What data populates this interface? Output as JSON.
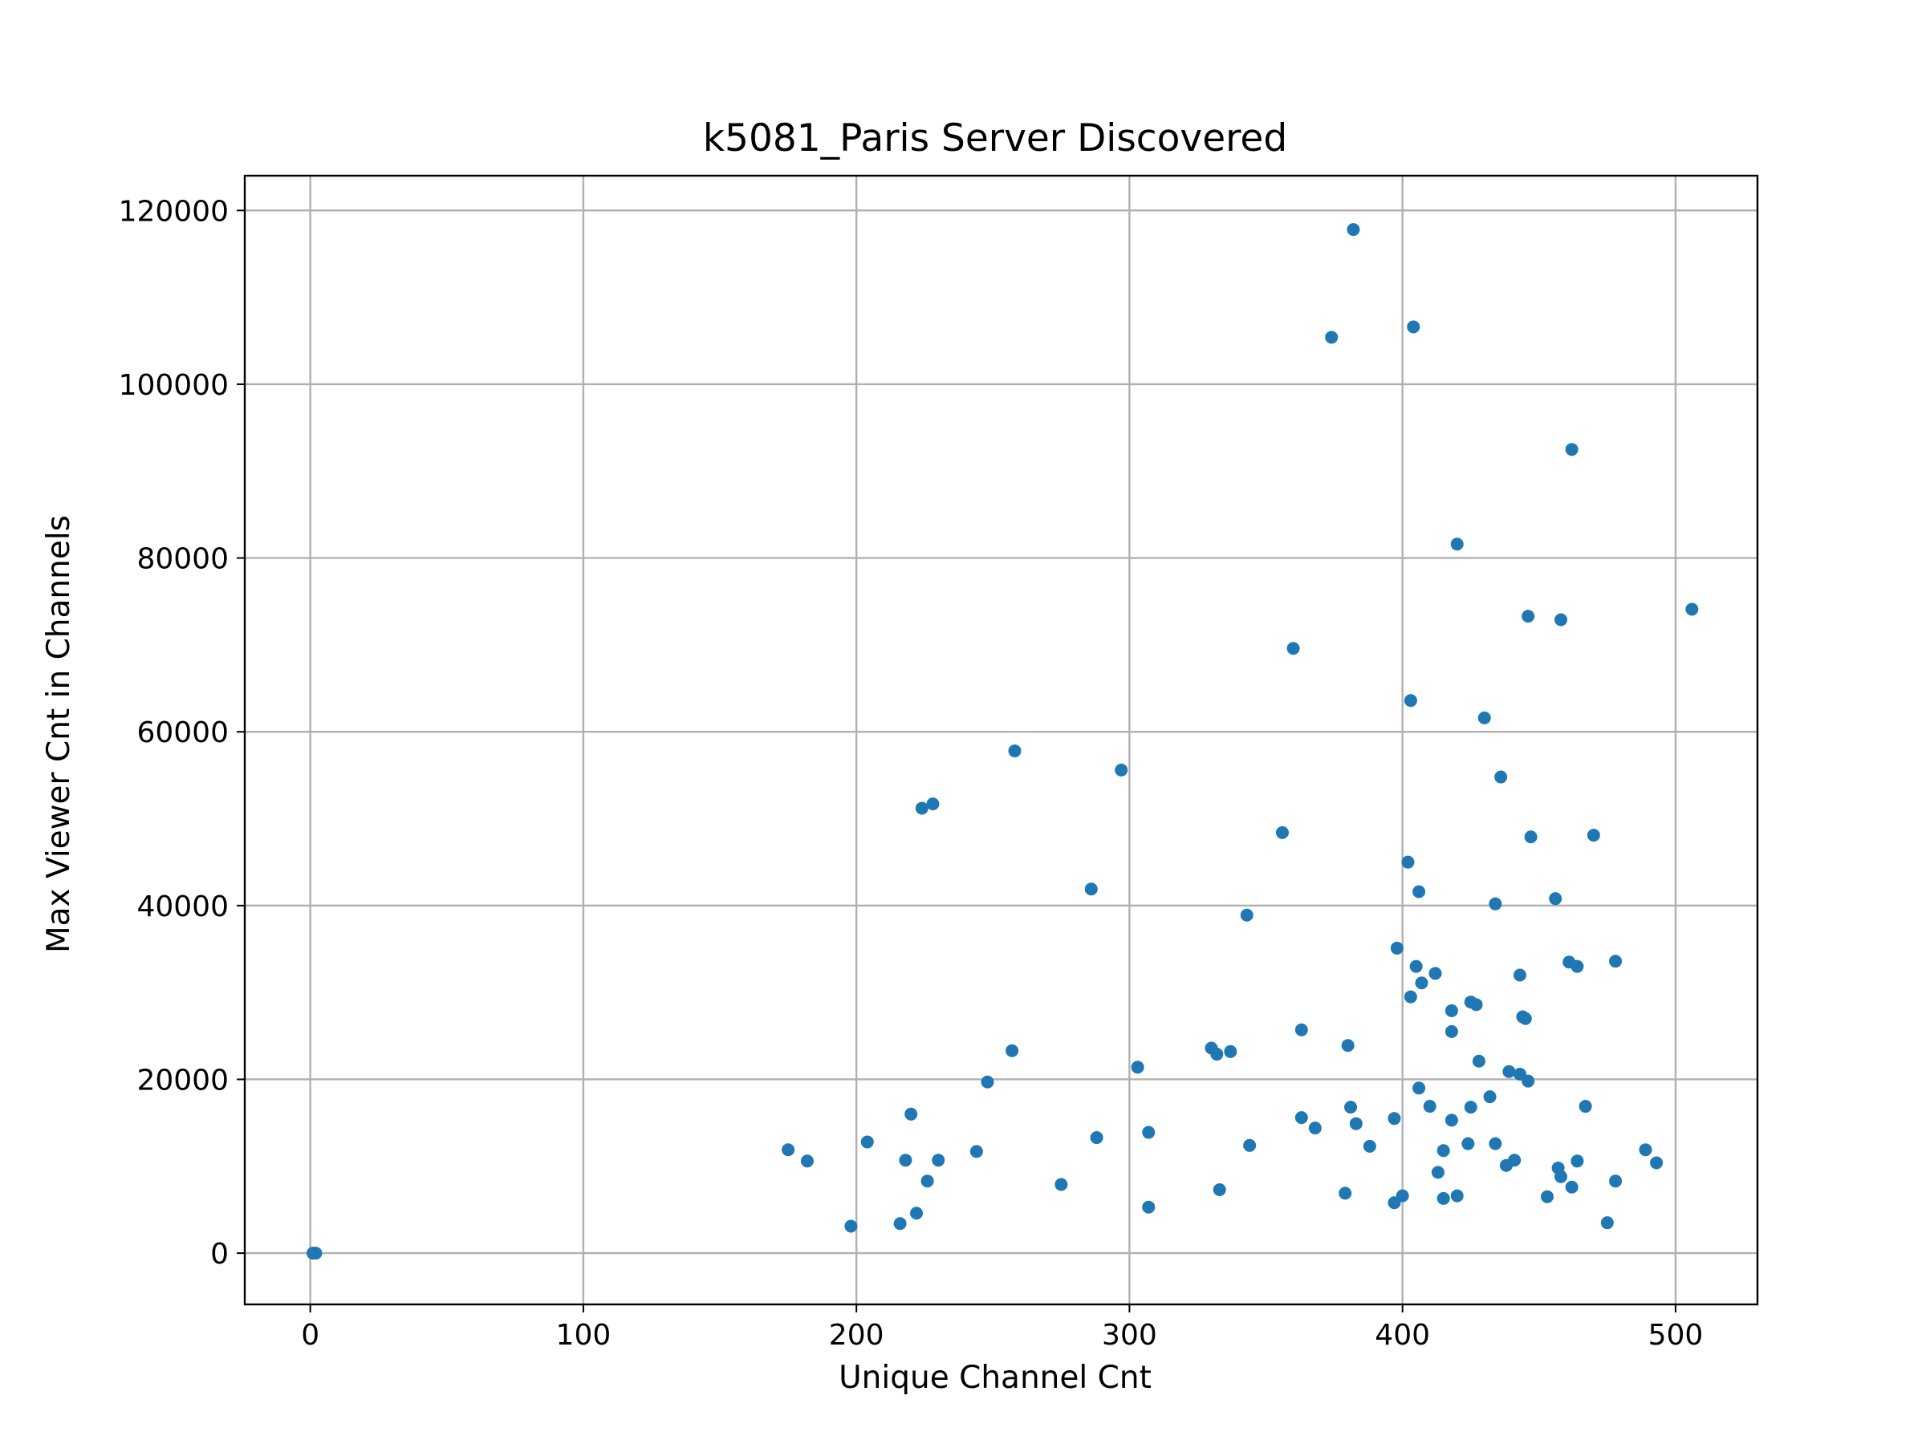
{
  "chart_data": {
    "type": "scatter",
    "title": "k5081_Paris Server Discovered",
    "xlabel": "Unique Channel Cnt",
    "ylabel": "Max Viewer Cnt in Channels",
    "xlim": [
      -24,
      530
    ],
    "ylim": [
      -5900,
      124000
    ],
    "xticks": [
      0,
      100,
      200,
      300,
      400,
      500
    ],
    "yticks": [
      0,
      20000,
      40000,
      60000,
      80000,
      100000,
      120000
    ],
    "grid": true,
    "point_color": "#1f77b4",
    "points": [
      [
        1,
        0
      ],
      [
        2,
        0
      ],
      [
        1,
        0
      ],
      [
        175,
        11900
      ],
      [
        182,
        10600
      ],
      [
        198,
        3100
      ],
      [
        204,
        12800
      ],
      [
        216,
        3400
      ],
      [
        218,
        10700
      ],
      [
        220,
        16000
      ],
      [
        222,
        4600
      ],
      [
        224,
        51200
      ],
      [
        226,
        8300
      ],
      [
        228,
        51700
      ],
      [
        230,
        10700
      ],
      [
        244,
        11700
      ],
      [
        248,
        19700
      ],
      [
        257,
        23300
      ],
      [
        258,
        57800
      ],
      [
        275,
        7900
      ],
      [
        286,
        41900
      ],
      [
        288,
        13300
      ],
      [
        297,
        55600
      ],
      [
        303,
        21400
      ],
      [
        307,
        5300
      ],
      [
        307,
        13900
      ],
      [
        330,
        23600
      ],
      [
        332,
        22900
      ],
      [
        333,
        7300
      ],
      [
        337,
        23200
      ],
      [
        343,
        38900
      ],
      [
        344,
        12400
      ],
      [
        356,
        48400
      ],
      [
        360,
        69600
      ],
      [
        363,
        25700
      ],
      [
        363,
        15600
      ],
      [
        368,
        14400
      ],
      [
        374,
        105400
      ],
      [
        379,
        6900
      ],
      [
        380,
        23900
      ],
      [
        381,
        16800
      ],
      [
        382,
        117800
      ],
      [
        383,
        14900
      ],
      [
        388,
        12300
      ],
      [
        397,
        15500
      ],
      [
        397,
        5800
      ],
      [
        398,
        35100
      ],
      [
        400,
        6600
      ],
      [
        402,
        45000
      ],
      [
        403,
        29500
      ],
      [
        403,
        63600
      ],
      [
        404,
        106600
      ],
      [
        405,
        33000
      ],
      [
        406,
        19000
      ],
      [
        406,
        41600
      ],
      [
        407,
        31100
      ],
      [
        410,
        16900
      ],
      [
        412,
        32200
      ],
      [
        413,
        9300
      ],
      [
        415,
        6300
      ],
      [
        415,
        11800
      ],
      [
        418,
        15300
      ],
      [
        418,
        25500
      ],
      [
        418,
        27900
      ],
      [
        420,
        6600
      ],
      [
        420,
        81600
      ],
      [
        424,
        12600
      ],
      [
        425,
        16800
      ],
      [
        425,
        28900
      ],
      [
        427,
        28600
      ],
      [
        428,
        22100
      ],
      [
        430,
        61600
      ],
      [
        432,
        18000
      ],
      [
        434,
        12600
      ],
      [
        434,
        40200
      ],
      [
        436,
        54800
      ],
      [
        438,
        10100
      ],
      [
        439,
        20900
      ],
      [
        441,
        10700
      ],
      [
        443,
        20600
      ],
      [
        443,
        32000
      ],
      [
        444,
        27200
      ],
      [
        445,
        27000
      ],
      [
        446,
        19800
      ],
      [
        446,
        73300
      ],
      [
        447,
        47900
      ],
      [
        453,
        6500
      ],
      [
        456,
        40800
      ],
      [
        457,
        9800
      ],
      [
        458,
        8800
      ],
      [
        458,
        72900
      ],
      [
        461,
        33500
      ],
      [
        462,
        7600
      ],
      [
        462,
        92500
      ],
      [
        464,
        33000
      ],
      [
        464,
        10600
      ],
      [
        467,
        16900
      ],
      [
        470,
        48100
      ],
      [
        475,
        3500
      ],
      [
        478,
        33600
      ],
      [
        478,
        8300
      ],
      [
        489,
        11900
      ],
      [
        493,
        10400
      ],
      [
        506,
        74100
      ]
    ]
  }
}
